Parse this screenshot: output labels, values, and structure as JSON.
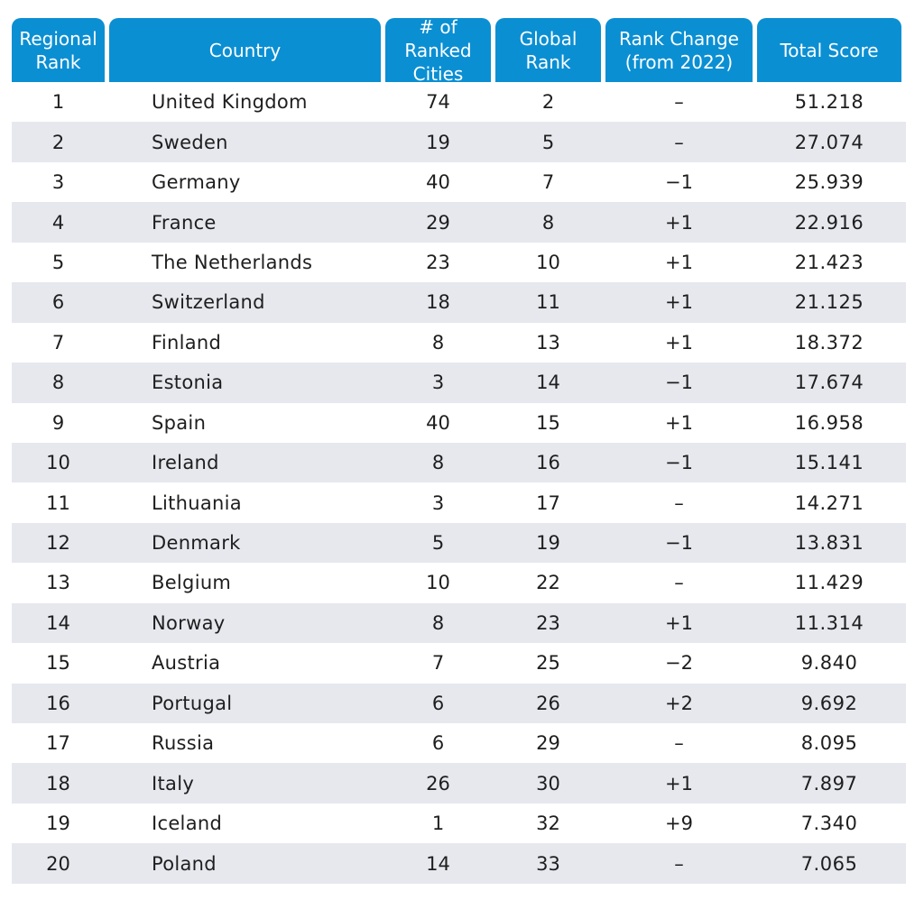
{
  "headers": {
    "regional_rank": "Regional\nRank",
    "country": "Country",
    "ranked_cities": "# of Ranked\nCities",
    "global_rank": "Global\nRank",
    "rank_change": "Rank Change\n(from 2022)",
    "total_score": "Total Score"
  },
  "colors": {
    "header_bg": "#0b8fd3",
    "row_shade": "#e6e8ee"
  },
  "rows": [
    {
      "rank": "1",
      "country": "United Kingdom",
      "cities": "74",
      "global": "2",
      "change": "–",
      "score": "51.218"
    },
    {
      "rank": "2",
      "country": "Sweden",
      "cities": "19",
      "global": "5",
      "change": "–",
      "score": "27.074"
    },
    {
      "rank": "3",
      "country": "Germany",
      "cities": "40",
      "global": "7",
      "change": "−1",
      "score": "25.939"
    },
    {
      "rank": "4",
      "country": "France",
      "cities": "29",
      "global": "8",
      "change": "+1",
      "score": "22.916"
    },
    {
      "rank": "5",
      "country": "The Netherlands",
      "cities": "23",
      "global": "10",
      "change": "+1",
      "score": "21.423"
    },
    {
      "rank": "6",
      "country": "Switzerland",
      "cities": "18",
      "global": "11",
      "change": "+1",
      "score": "21.125"
    },
    {
      "rank": "7",
      "country": "Finland",
      "cities": "8",
      "global": "13",
      "change": "+1",
      "score": "18.372"
    },
    {
      "rank": "8",
      "country": "Estonia",
      "cities": "3",
      "global": "14",
      "change": "−1",
      "score": "17.674"
    },
    {
      "rank": "9",
      "country": "Spain",
      "cities": "40",
      "global": "15",
      "change": "+1",
      "score": "16.958"
    },
    {
      "rank": "10",
      "country": "Ireland",
      "cities": "8",
      "global": "16",
      "change": "−1",
      "score": "15.141"
    },
    {
      "rank": "11",
      "country": "Lithuania",
      "cities": "3",
      "global": "17",
      "change": "–",
      "score": "14.271"
    },
    {
      "rank": "12",
      "country": "Denmark",
      "cities": "5",
      "global": "19",
      "change": "−1",
      "score": "13.831"
    },
    {
      "rank": "13",
      "country": "Belgium",
      "cities": "10",
      "global": "22",
      "change": "–",
      "score": "11.429"
    },
    {
      "rank": "14",
      "country": "Norway",
      "cities": "8",
      "global": "23",
      "change": "+1",
      "score": "11.314"
    },
    {
      "rank": "15",
      "country": "Austria",
      "cities": "7",
      "global": "25",
      "change": "−2",
      "score": "9.840"
    },
    {
      "rank": "16",
      "country": "Portugal",
      "cities": "6",
      "global": "26",
      "change": "+2",
      "score": "9.692"
    },
    {
      "rank": "17",
      "country": "Russia",
      "cities": "6",
      "global": "29",
      "change": "–",
      "score": "8.095"
    },
    {
      "rank": "18",
      "country": "Italy",
      "cities": "26",
      "global": "30",
      "change": "+1",
      "score": "7.897"
    },
    {
      "rank": "19",
      "country": "Iceland",
      "cities": "1",
      "global": "32",
      "change": "+9",
      "score": "7.340"
    },
    {
      "rank": "20",
      "country": "Poland",
      "cities": "14",
      "global": "33",
      "change": "–",
      "score": "7.065"
    }
  ]
}
